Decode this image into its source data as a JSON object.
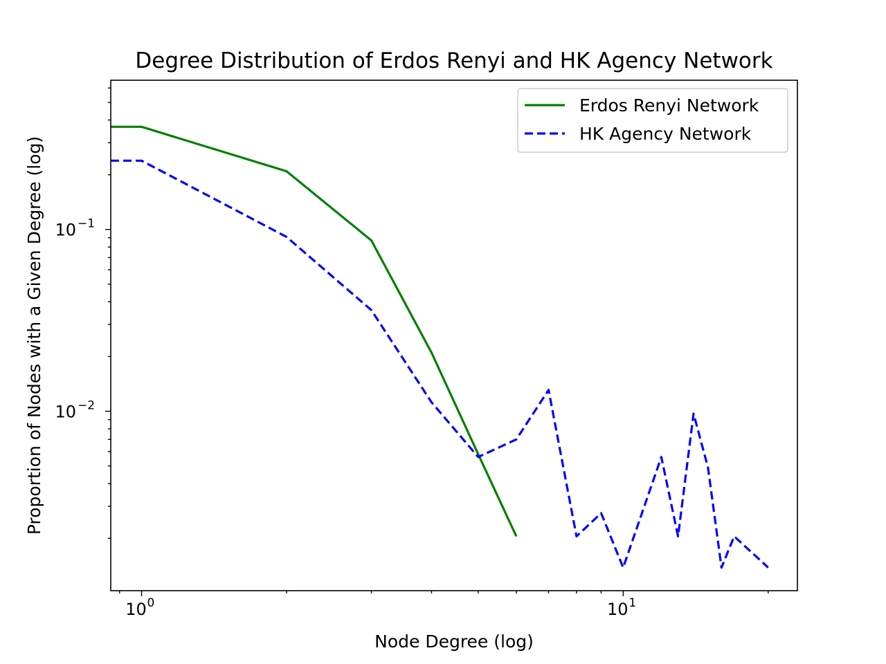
{
  "chart_data": {
    "type": "line",
    "title": "Degree Distribution of Erdos Renyi and HK Agency Network",
    "xlabel": "Node Degree (log)",
    "ylabel": "Proportion of Nodes with a Given Degree (log)",
    "xscale": "log",
    "yscale": "log",
    "xlim": [
      0.863,
      23.0
    ],
    "ylim": [
      0.00103,
      0.662
    ],
    "grid": false,
    "legend_position": "top-right",
    "x_ticks": [
      {
        "value": 1,
        "base": "10",
        "exp": "0"
      },
      {
        "value": 10,
        "base": "10",
        "exp": "1"
      }
    ],
    "y_ticks": [
      {
        "value": 0.1,
        "base": "10",
        "exp": "−1"
      },
      {
        "value": 0.01,
        "base": "10",
        "exp": "−2"
      }
    ],
    "series": [
      {
        "name": "Erdos Renyi Network",
        "color": "#008000",
        "style": "solid",
        "x": [
          0.863,
          1,
          2,
          3,
          4,
          5,
          6
        ],
        "y": [
          0.367,
          0.367,
          0.209,
          0.087,
          0.021,
          0.0058,
          0.00205
        ]
      },
      {
        "name": "HK Agency Network",
        "color": "#0000ff",
        "style": "dashed",
        "x": [
          0.863,
          1,
          2,
          3,
          4,
          5,
          6,
          7,
          8,
          9,
          10,
          12,
          13,
          14,
          15,
          16,
          17,
          20
        ],
        "y": [
          0.239,
          0.239,
          0.091,
          0.036,
          0.0112,
          0.0056,
          0.007,
          0.0131,
          0.00205,
          0.00275,
          0.00138,
          0.0056,
          0.00205,
          0.0097,
          0.0049,
          0.00138,
          0.00205,
          0.00138
        ]
      }
    ]
  }
}
